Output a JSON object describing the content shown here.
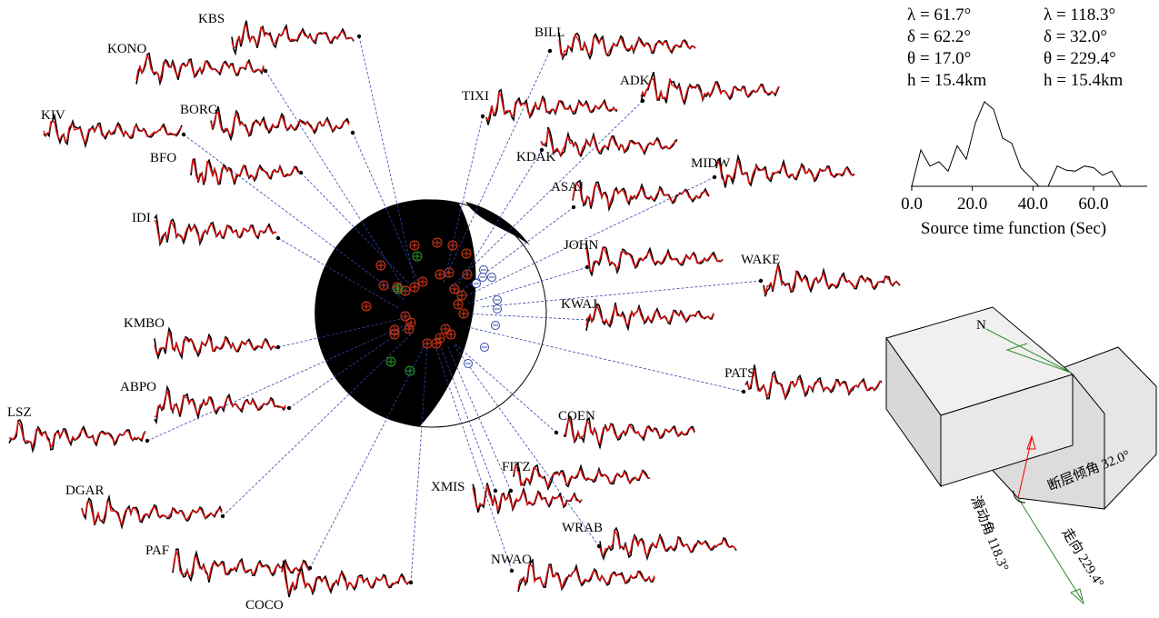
{
  "parameters": [
    [
      "λ = 61.7°",
      "δ = 62.2°",
      "θ = 17.0°",
      "h = 15.4km"
    ],
    [
      "λ = 118.3°",
      "δ = 32.0°",
      "θ = 229.4°",
      "h = 15.4km"
    ]
  ],
  "stations": [
    "KBS",
    "KONO",
    "KIV",
    "BORG",
    "BFO",
    "IDI",
    "KMBO",
    "ABPO",
    "LSZ",
    "DGAR",
    "PAF",
    "COCO",
    "BILL",
    "TIXI",
    "ADK",
    "KDAK",
    "ASAJ",
    "MIDW",
    "JOHN",
    "WAKE",
    "KWAJ",
    "PATS",
    "COEN",
    "FITZ",
    "XMIS",
    "WRAB",
    "NWAO"
  ],
  "chart_data": {
    "type": "line",
    "xlabel": "Source time function (Sec)",
    "x": [
      0,
      3,
      6,
      9,
      12,
      15,
      18,
      21,
      24,
      27,
      30,
      33,
      36,
      39,
      42,
      45,
      48,
      51,
      54,
      57,
      60,
      63,
      66,
      69,
      72,
      75
    ],
    "values": [
      0,
      0.43,
      0.24,
      0.29,
      0.18,
      0.48,
      0.32,
      0.75,
      1,
      0.91,
      0.57,
      0.51,
      0.22,
      0.11,
      0,
      0,
      0.24,
      0.19,
      0.18,
      0.24,
      0.22,
      0.13,
      0.18,
      0,
      0,
      0
    ],
    "color": "#000000",
    "xlim": [
      0,
      78
    ],
    "ylim": [
      0,
      1
    ],
    "xticks": [
      {
        "value": 0,
        "label": "0.0"
      },
      {
        "value": 20,
        "label": "20.0"
      },
      {
        "value": 40,
        "label": "40.0"
      },
      {
        "value": 60,
        "label": "60.0"
      }
    ]
  },
  "block_diagram": {
    "north": "N",
    "dip_label": "断层倾角 32.0°",
    "rake_label": "滑动角 118.3°",
    "strike_label": "走向 229.4°"
  }
}
